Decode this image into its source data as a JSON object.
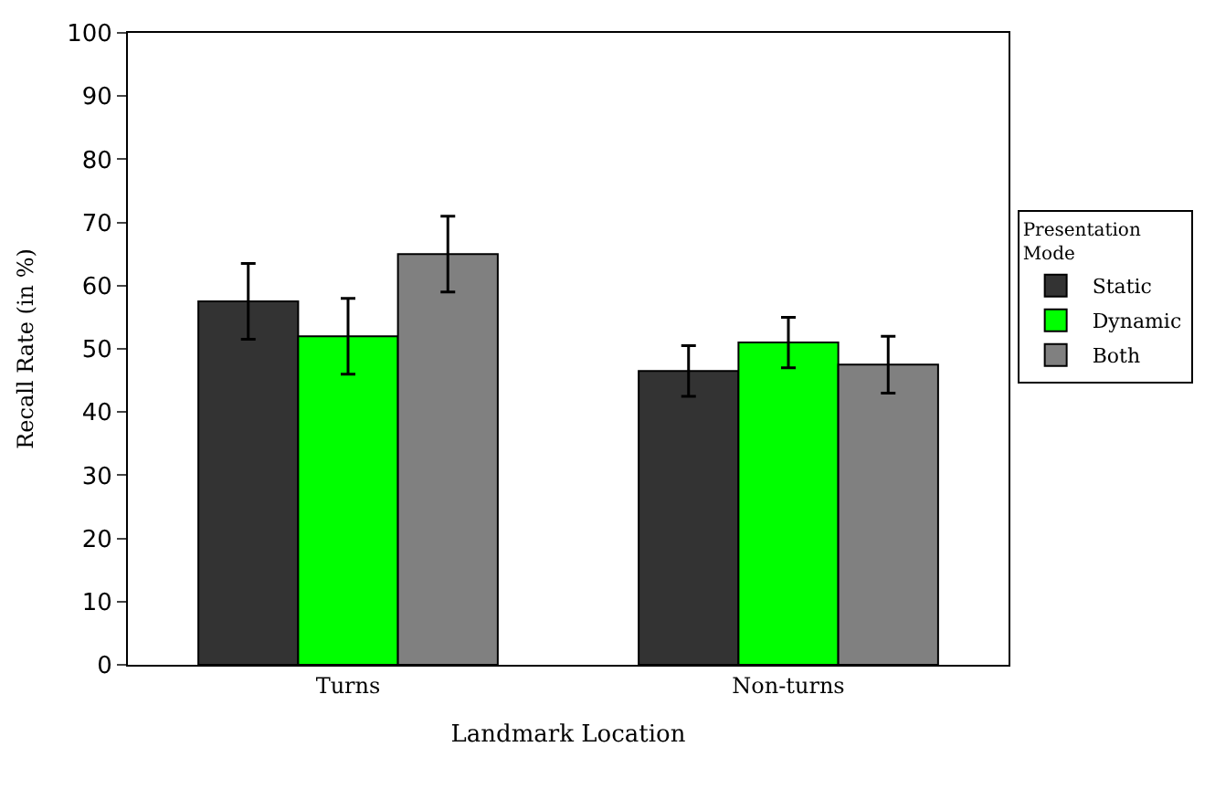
{
  "chart_data": {
    "type": "bar",
    "xlabel": "Landmark Location",
    "ylabel": "Recall Rate (in %)",
    "legend_title": "Presentation Mode",
    "categories": [
      "Turns",
      "Non-turns"
    ],
    "series": [
      {
        "name": "Static",
        "color": "#333333",
        "values": [
          57.5,
          46.5
        ],
        "errors": [
          6,
          4
        ]
      },
      {
        "name": "Dynamic",
        "color": "#00ff00",
        "values": [
          52,
          51
        ],
        "errors": [
          6,
          4
        ]
      },
      {
        "name": "Both",
        "color": "#808080",
        "values": [
          65,
          47.5
        ],
        "errors": [
          6,
          4.5
        ]
      }
    ],
    "ylim": [
      0,
      100
    ],
    "yticks": [
      0,
      10,
      20,
      30,
      40,
      50,
      60,
      70,
      80,
      90,
      100
    ],
    "legend": "right"
  }
}
